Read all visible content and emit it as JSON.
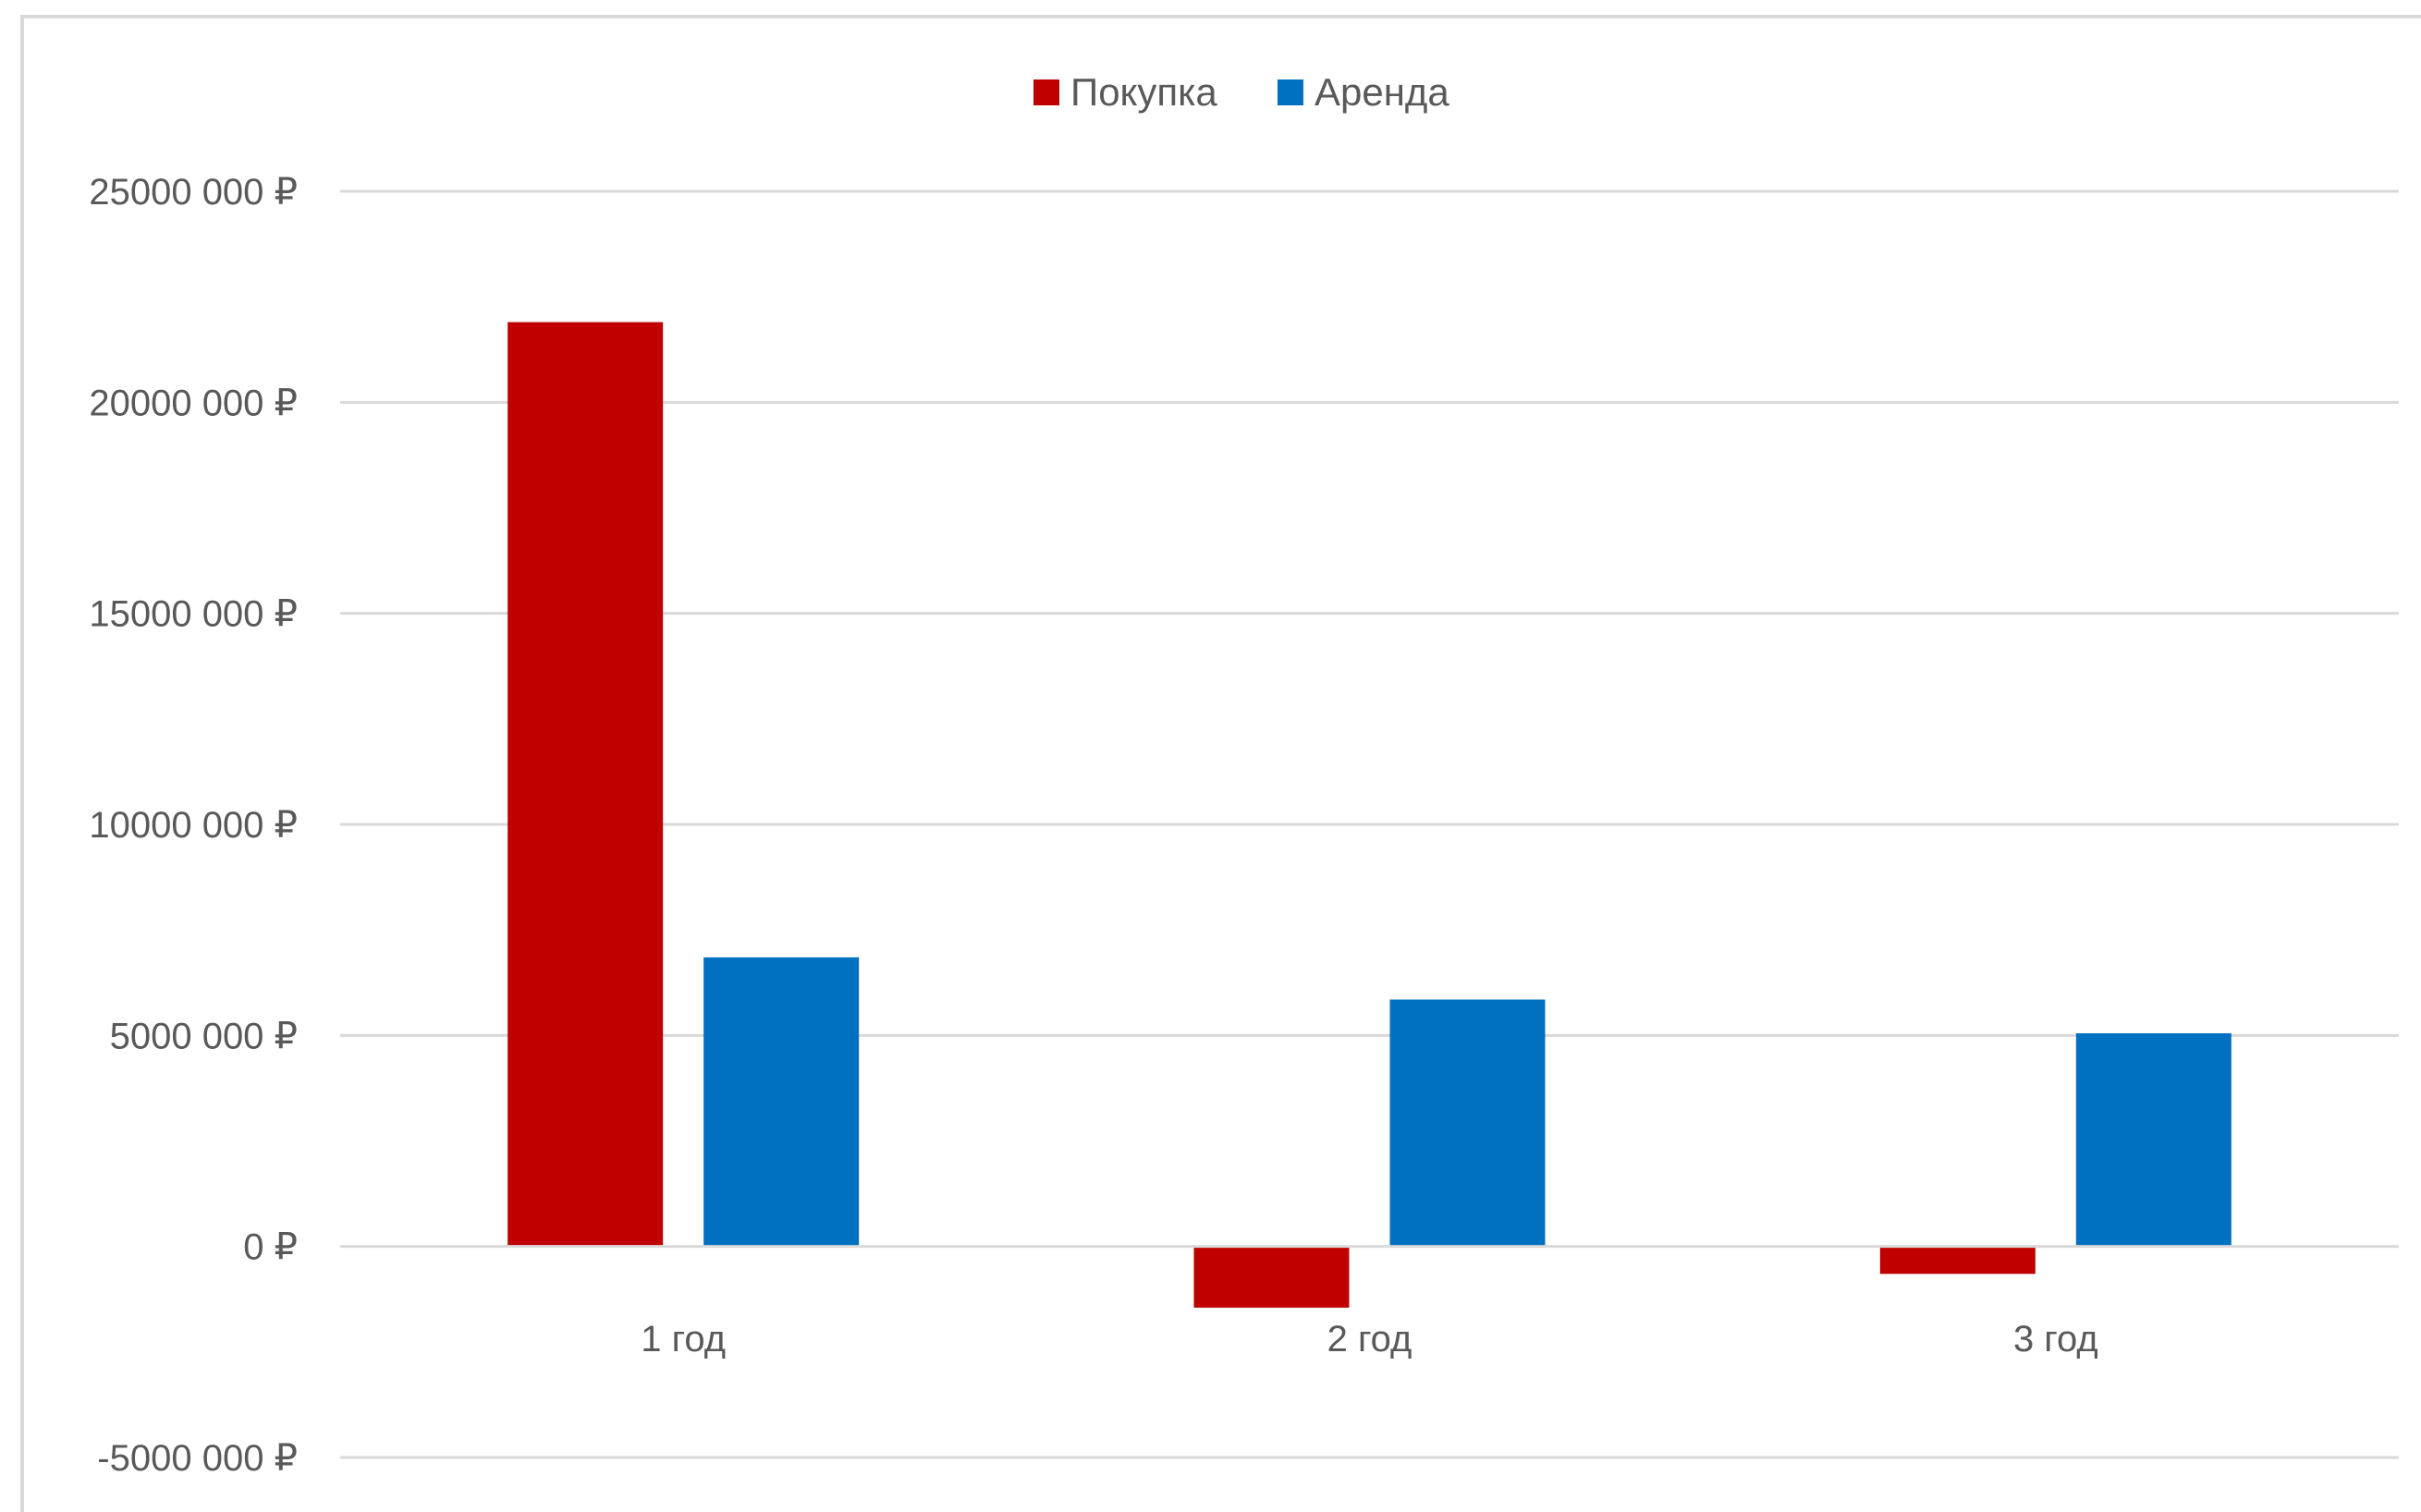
{
  "chart_data": {
    "type": "bar",
    "title": "",
    "xlabel": "",
    "ylabel": "",
    "categories": [
      "1 год",
      "2 год",
      "3 год"
    ],
    "series": [
      {
        "name": "Покупка",
        "color": "#c00000",
        "values": [
          21900000,
          -1450000,
          -650000
        ]
      },
      {
        "name": "Аренда",
        "color": "#0070c0",
        "values": [
          6850000,
          5850000,
          5050000
        ]
      }
    ],
    "ylim": [
      -5000000,
      25000000
    ],
    "yticks": [
      25000000,
      20000000,
      15000000,
      10000000,
      5000000,
      0,
      -5000000
    ],
    "ytick_labels": [
      "25000 000 ₽",
      "20000 000 ₽",
      "15000 000 ₽",
      "10000 000 ₽",
      "5000 000 ₽",
      "0 ₽",
      "-5000 000 ₽"
    ],
    "grid": true,
    "legend_position": "top-center"
  }
}
